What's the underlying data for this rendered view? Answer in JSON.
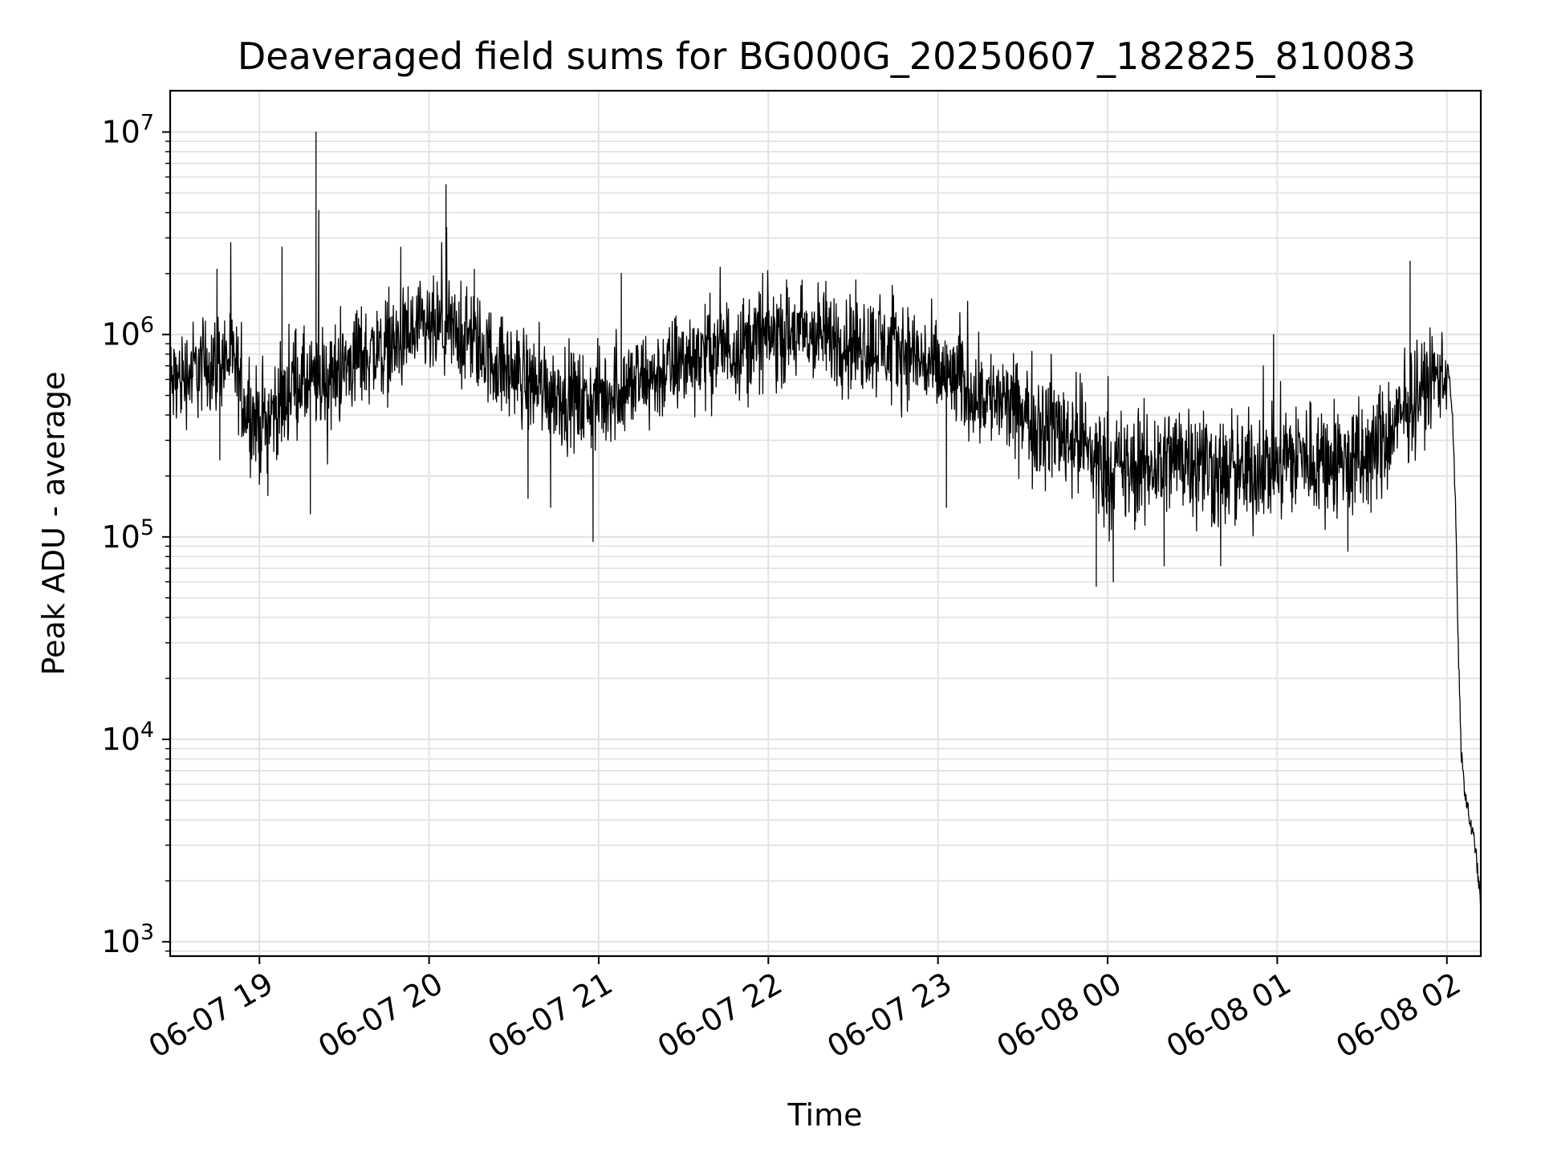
{
  "chart_data": {
    "type": "line",
    "title": "Deaveraged field sums for BG000G_20250607_182825_810083",
    "xlabel": "Time",
    "ylabel": "Peak ADU - average",
    "yscale": "log",
    "ylim": [
      850,
      16000000
    ],
    "xlim": [
      "2025-06-07 18:28:25",
      "2025-06-08 02:12:00"
    ],
    "grid": true,
    "line_color": "#000000",
    "x_ticks": [
      "06-07 19",
      "06-07 20",
      "06-07 21",
      "06-07 22",
      "06-07 23",
      "06-08 00",
      "06-08 01",
      "06-08 02"
    ],
    "y_ticks": [
      {
        "base": "10",
        "exp": "3",
        "value": 1000
      },
      {
        "base": "10",
        "exp": "4",
        "value": 10000
      },
      {
        "base": "10",
        "exp": "5",
        "value": 100000
      },
      {
        "base": "10",
        "exp": "6",
        "value": 1000000
      },
      {
        "base": "10",
        "exp": "7",
        "value": 10000000
      }
    ],
    "series": [
      {
        "x": [
          "2025-06-07 18:28:25",
          "2025-06-07 18:35",
          "2025-06-07 18:42",
          "2025-06-07 18:50",
          "2025-06-07 18:55",
          "2025-06-07 19:00",
          "2025-06-07 19:05",
          "2025-06-07 19:10",
          "2025-06-07 19:12",
          "2025-06-07 19:18",
          "2025-06-07 19:25",
          "2025-06-07 19:35",
          "2025-06-07 19:45",
          "2025-06-07 19:55",
          "2025-06-07 20:05",
          "2025-06-07 20:15",
          "2025-06-07 20:25",
          "2025-06-07 20:35",
          "2025-06-07 20:45",
          "2025-06-07 20:55",
          "2025-06-07 21:05",
          "2025-06-07 21:20",
          "2025-06-07 21:35",
          "2025-06-07 21:50",
          "2025-06-07 22:05",
          "2025-06-07 22:20",
          "2025-06-07 22:35",
          "2025-06-07 22:50",
          "2025-06-07 23:00",
          "2025-06-07 23:10",
          "2025-06-07 23:20",
          "2025-06-07 23:30",
          "2025-06-07 23:40",
          "2025-06-07 23:50",
          "2025-06-08 00:00",
          "2025-06-08 00:10",
          "2025-06-08 00:20",
          "2025-06-08 00:30",
          "2025-06-08 00:40",
          "2025-06-08 00:50",
          "2025-06-08 01:00",
          "2025-06-08 01:10",
          "2025-06-08 01:20",
          "2025-06-08 01:30",
          "2025-06-08 01:40",
          "2025-06-08 01:50",
          "2025-06-08 02:00",
          "2025-06-08 02:01",
          "2025-06-08 02:02",
          "2025-06-08 02:03",
          "2025-06-08 02:04",
          "2025-06-08 02:05",
          "2025-06-08 02:06",
          "2025-06-08 02:08",
          "2025-06-08 02:10",
          "2025-06-08 02:12"
        ],
        "y": [
          560000,
          650000,
          720000,
          780000,
          450000,
          350000,
          420000,
          480000,
          620000,
          550000,
          600000,
          780000,
          850000,
          1000000,
          1050000,
          950000,
          700000,
          600000,
          520000,
          450000,
          520000,
          620000,
          800000,
          900000,
          1000000,
          980000,
          900000,
          820000,
          650000,
          550000,
          480000,
          400000,
          360000,
          300000,
          220000,
          210000,
          240000,
          260000,
          200000,
          210000,
          240000,
          250000,
          240000,
          230000,
          320000,
          520000,
          700000,
          600000,
          400000,
          150000,
          30000,
          9000,
          6000,
          4000,
          3000,
          1500
        ]
      }
    ],
    "spikes": [
      {
        "x": "2025-06-07 19:08",
        "y": 2700000
      },
      {
        "x": "2025-06-07 19:20",
        "y": 10000000
      },
      {
        "x": "2025-06-07 19:21",
        "y": 4100000
      },
      {
        "x": "2025-06-07 19:50",
        "y": 2700000
      },
      {
        "x": "2025-06-07 20:06",
        "y": 5500000
      },
      {
        "x": "2025-06-07 20:16",
        "y": 2100000
      },
      {
        "x": "2025-06-07 18:45",
        "y": 2100000
      },
      {
        "x": "2025-06-07 21:08",
        "y": 2000000
      },
      {
        "x": "2025-06-07 21:58",
        "y": 2000000
      },
      {
        "x": "2025-06-08 01:47",
        "y": 2300000
      }
    ],
    "dips": [
      {
        "x": "2025-06-07 18:46",
        "y": 240000
      },
      {
        "x": "2025-06-07 19:03",
        "y": 160000
      },
      {
        "x": "2025-06-07 19:18",
        "y": 130000
      },
      {
        "x": "2025-06-07 20:35",
        "y": 155000
      },
      {
        "x": "2025-06-07 20:43",
        "y": 140000
      },
      {
        "x": "2025-06-07 20:58",
        "y": 95000
      },
      {
        "x": "2025-06-07 23:03",
        "y": 140000
      },
      {
        "x": "2025-06-07 23:56",
        "y": 57000
      },
      {
        "x": "2025-06-08 00:02",
        "y": 60000
      },
      {
        "x": "2025-06-08 00:20",
        "y": 72000
      },
      {
        "x": "2025-06-08 00:40",
        "y": 72000
      },
      {
        "x": "2025-06-08 01:25",
        "y": 85000
      }
    ]
  }
}
